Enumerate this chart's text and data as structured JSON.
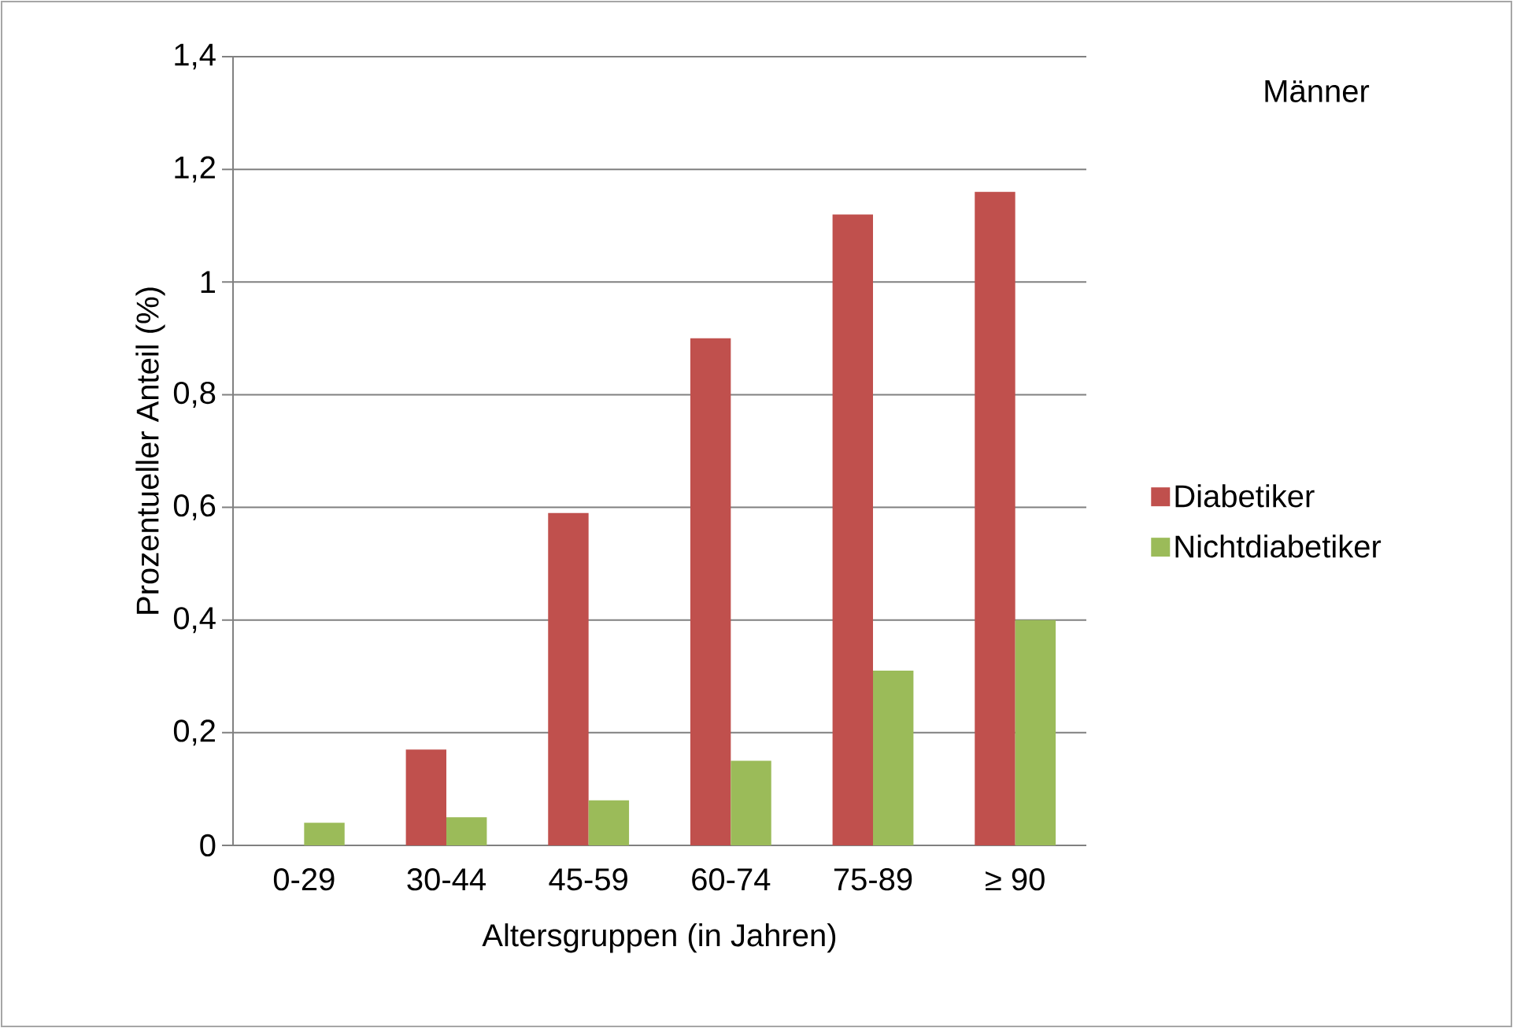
{
  "chart_data": {
    "type": "bar",
    "xlabel": "Altersgruppen (in Jahren)",
    "ylabel": "Prozentueller Anteil (%)",
    "categories": [
      "0-29",
      "30-44",
      "45-59",
      "60-74",
      "75-89",
      "≥ 90"
    ],
    "series": [
      {
        "name": "Diabetiker",
        "color": "#c0504d",
        "values": [
          null,
          0.17,
          0.59,
          0.9,
          1.12,
          1.16
        ]
      },
      {
        "name": "Nichtdiabetiker",
        "color": "#9bbb59",
        "values": [
          0.04,
          0.05,
          0.08,
          0.15,
          0.31,
          0.4
        ]
      }
    ],
    "ylim": [
      0,
      1.4
    ],
    "yticks": [
      0,
      {
        "value": 0.2,
        "label": "0,2"
      },
      {
        "value": 0.4,
        "label": "0,4"
      },
      {
        "value": 0.6,
        "label": "0,6"
      },
      {
        "value": 0.8,
        "label": "0,8"
      },
      1,
      {
        "value": 1.2,
        "label": "1,2"
      },
      {
        "value": 1.4,
        "label": "1,4"
      }
    ],
    "grid": "y",
    "legend": "right",
    "annotations": [
      "Männer"
    ]
  }
}
